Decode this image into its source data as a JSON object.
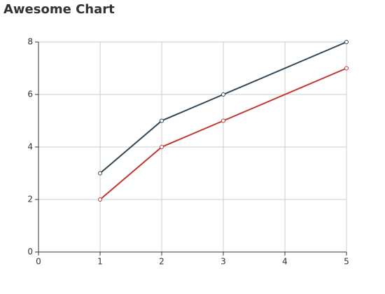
{
  "chart_data": {
    "type": "line",
    "title": "Awesome Chart",
    "x": [
      1,
      2,
      3,
      5
    ],
    "series": [
      {
        "color": "#2f4554",
        "values": [
          3,
          5,
          6,
          8
        ]
      },
      {
        "color": "#c23531",
        "values": [
          2,
          4,
          5,
          7
        ]
      }
    ],
    "xlim": [
      0,
      5
    ],
    "xticks": [
      0,
      1,
      2,
      3,
      4,
      5
    ],
    "ylim": [
      0,
      8
    ],
    "yticks": [
      0,
      2,
      4,
      6,
      8
    ],
    "grid": true
  }
}
